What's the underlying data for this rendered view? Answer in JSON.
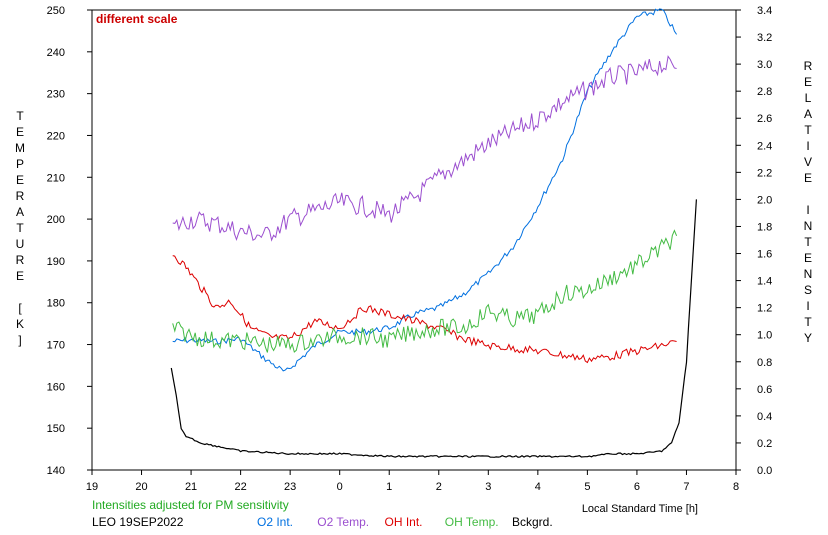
{
  "chart_data": {
    "type": "line",
    "annotation": "different scale",
    "left_axis_label": "TEMPERATURE [K]",
    "right_axis_label": "RELATIVE INTENSITY",
    "xlabel": "Local Standard Time [h]",
    "x_ticks": [
      "19",
      "20",
      "21",
      "22",
      "23",
      "0",
      "1",
      "2",
      "3",
      "4",
      "5",
      "6",
      "7",
      "8"
    ],
    "y_left_ticks": [
      "140",
      "150",
      "160",
      "170",
      "180",
      "190",
      "200",
      "210",
      "220",
      "230",
      "240",
      "250"
    ],
    "y_right_ticks": [
      "0.0",
      "0.2",
      "0.4",
      "0.6",
      "0.8",
      "1.0",
      "1.2",
      "1.4",
      "1.6",
      "1.8",
      "2.0",
      "2.2",
      "2.4",
      "2.6",
      "2.8",
      "3.0",
      "3.2",
      "3.4"
    ],
    "x_range_hours_after_19": [
      0,
      13
    ],
    "ylim_left": [
      140,
      250
    ],
    "ylim_right": [
      0.0,
      3.4
    ],
    "grid": false,
    "series": [
      {
        "name": "O2 Int.",
        "axis": "right",
        "color": "#0070e0",
        "x": [
          1.63,
          2.0,
          2.5,
          3.0,
          3.5,
          3.9,
          4.5,
          5.0,
          5.5,
          6.0,
          6.5,
          7.0,
          7.5,
          8.0,
          8.5,
          9.0,
          9.5,
          10.0,
          10.5,
          11.0,
          11.5,
          11.8
        ],
        "y": [
          0.95,
          0.96,
          0.95,
          0.97,
          0.82,
          0.72,
          0.92,
          1.02,
          1.02,
          1.05,
          1.15,
          1.2,
          1.3,
          1.45,
          1.65,
          1.95,
          2.3,
          2.8,
          3.1,
          3.35,
          3.4,
          3.22
        ]
      },
      {
        "name": "O2 Temp.",
        "axis": "left",
        "color": "#9b4fcf",
        "x": [
          1.63,
          2.0,
          2.5,
          3.0,
          3.5,
          4.0,
          4.5,
          5.0,
          5.5,
          6.0,
          6.5,
          7.0,
          7.5,
          8.0,
          8.5,
          9.0,
          9.5,
          10.0,
          10.5,
          11.0,
          11.5,
          11.8
        ],
        "y": [
          198,
          200,
          199,
          197,
          196,
          200,
          202,
          204,
          203,
          201,
          205,
          210,
          214,
          218,
          221,
          224,
          228,
          231,
          234,
          235,
          237,
          236
        ]
      },
      {
        "name": "OH Int.",
        "axis": "right",
        "color": "#dd0000",
        "x": [
          1.63,
          1.9,
          2.3,
          2.5,
          2.8,
          3.2,
          3.6,
          4.0,
          4.5,
          5.0,
          5.5,
          6.0,
          6.5,
          7.0,
          7.5,
          8.0,
          8.5,
          9.0,
          9.5,
          10.0,
          10.5,
          11.0,
          11.5,
          11.8
        ],
        "y": [
          1.6,
          1.5,
          1.3,
          1.2,
          1.25,
          1.05,
          0.98,
          0.97,
          1.1,
          1.05,
          1.2,
          1.15,
          1.1,
          1.05,
          0.97,
          0.92,
          0.9,
          0.88,
          0.85,
          0.82,
          0.84,
          0.88,
          0.92,
          0.95
        ]
      },
      {
        "name": "OH Temp.",
        "axis": "left",
        "color": "#44bb44",
        "x": [
          1.63,
          2.0,
          2.5,
          3.0,
          3.5,
          4.0,
          4.5,
          5.0,
          5.5,
          6.0,
          6.5,
          7.0,
          7.5,
          8.0,
          8.5,
          9.0,
          9.5,
          10.0,
          10.5,
          11.0,
          11.5,
          11.8
        ],
        "y": [
          174,
          172,
          171,
          171,
          170,
          170,
          171,
          172,
          172,
          171,
          173,
          174,
          174,
          178,
          176,
          177,
          182,
          183,
          186,
          189,
          193,
          196
        ]
      },
      {
        "name": "Bckgrd.",
        "axis": "right",
        "color": "#000000",
        "x": [
          1.6,
          1.7,
          1.8,
          1.9,
          2.2,
          3.0,
          4.0,
          5.0,
          6.0,
          7.0,
          8.0,
          9.0,
          10.0,
          10.5,
          11.0,
          11.3,
          11.5,
          11.7,
          11.85,
          12.0,
          12.2
        ],
        "y": [
          0.75,
          0.55,
          0.3,
          0.25,
          0.2,
          0.14,
          0.12,
          0.12,
          0.1,
          0.1,
          0.1,
          0.1,
          0.1,
          0.12,
          0.12,
          0.13,
          0.14,
          0.2,
          0.35,
          0.8,
          2.0
        ]
      }
    ]
  },
  "footer": {
    "note": "Intensities adjusted for PM sensitivity",
    "station": "LEO 19SEP2022",
    "legend": [
      {
        "label": "O2 Int.",
        "color": "#0070e0"
      },
      {
        "label": "O2 Temp.",
        "color": "#9b4fcf"
      },
      {
        "label": "OH Int.",
        "color": "#dd0000"
      },
      {
        "label": "OH Temp.",
        "color": "#44bb44"
      },
      {
        "label": "Bckgrd.",
        "color": "#000000"
      }
    ]
  },
  "colors": {
    "note": "#22aa22",
    "annotation": "#cc0000"
  }
}
